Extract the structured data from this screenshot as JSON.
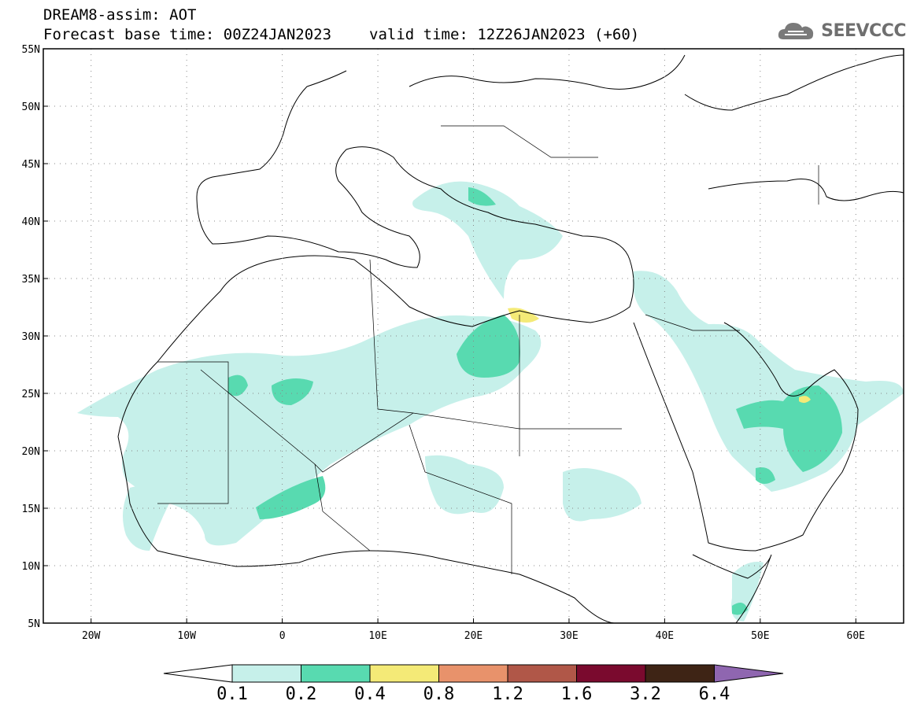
{
  "title": {
    "line1": "DREAM8-assim: AOT",
    "line2_base": "Forecast base time: 00Z24JAN2023",
    "line2_valid": "valid time: 12Z26JAN2023 (+60)"
  },
  "brand": {
    "name": "SEEVCCC",
    "icon": "cloud-logo-icon"
  },
  "axes": {
    "lat_labels": [
      "55N",
      "50N",
      "45N",
      "40N",
      "35N",
      "30N",
      "25N",
      "20N",
      "15N",
      "10N",
      "5N"
    ],
    "lon_labels": [
      "20W",
      "10W",
      "0",
      "10E",
      "20E",
      "30E",
      "40E",
      "50E",
      "60E"
    ],
    "lon_range": [
      -25,
      65
    ],
    "lat_range": [
      5,
      55
    ],
    "grid": "dotted"
  },
  "colorbar": {
    "labels": [
      "0.1",
      "0.2",
      "0.4",
      "0.8",
      "1.2",
      "1.6",
      "3.2",
      "6.4"
    ],
    "colors": [
      "#ffffff",
      "#c6f0ea",
      "#58dab0",
      "#f4ea77",
      "#e8926b",
      "#b05748",
      "#7a0a2e",
      "#3e2415",
      "#8f66b0"
    ]
  }
}
